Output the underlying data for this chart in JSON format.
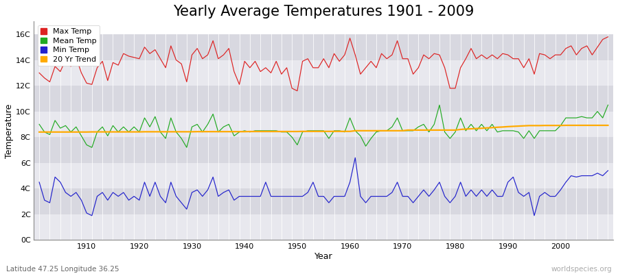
{
  "title": "Yearly Average Temperatures 1901 - 2009",
  "xlabel": "Year",
  "ylabel": "Temperature",
  "subtitle_left": "Latitude 47.25 Longitude 36.25",
  "subtitle_right": "worldspecies.org",
  "years": [
    1901,
    1902,
    1903,
    1904,
    1905,
    1906,
    1907,
    1908,
    1909,
    1910,
    1911,
    1912,
    1913,
    1914,
    1915,
    1916,
    1917,
    1918,
    1919,
    1920,
    1921,
    1922,
    1923,
    1924,
    1925,
    1926,
    1927,
    1928,
    1929,
    1930,
    1931,
    1932,
    1933,
    1934,
    1935,
    1936,
    1937,
    1938,
    1939,
    1940,
    1941,
    1942,
    1943,
    1944,
    1945,
    1946,
    1947,
    1948,
    1949,
    1950,
    1951,
    1952,
    1953,
    1954,
    1955,
    1956,
    1957,
    1958,
    1959,
    1960,
    1961,
    1962,
    1963,
    1964,
    1965,
    1966,
    1967,
    1968,
    1969,
    1970,
    1971,
    1972,
    1973,
    1974,
    1975,
    1976,
    1977,
    1978,
    1979,
    1980,
    1981,
    1982,
    1983,
    1984,
    1985,
    1986,
    1987,
    1988,
    1989,
    1990,
    1991,
    1992,
    1993,
    1994,
    1995,
    1996,
    1997,
    1998,
    1999,
    2000,
    2001,
    2002,
    2003,
    2004,
    2005,
    2006,
    2007,
    2008,
    2009
  ],
  "max_temp": [
    13.0,
    12.6,
    12.3,
    13.5,
    13.1,
    14.0,
    13.5,
    14.2,
    13.0,
    12.2,
    12.1,
    13.4,
    13.9,
    12.4,
    13.8,
    13.6,
    14.5,
    14.3,
    14.2,
    14.1,
    15.0,
    14.5,
    14.8,
    14.1,
    13.4,
    15.1,
    14.0,
    13.7,
    12.3,
    14.4,
    14.9,
    14.1,
    14.4,
    15.5,
    14.1,
    14.4,
    14.9,
    13.1,
    12.1,
    13.9,
    13.4,
    13.9,
    13.1,
    13.4,
    13.0,
    13.9,
    12.9,
    13.4,
    11.8,
    11.6,
    13.9,
    14.1,
    13.4,
    13.4,
    14.1,
    13.4,
    14.5,
    13.9,
    14.4,
    15.7,
    14.4,
    12.9,
    13.4,
    13.9,
    13.4,
    14.5,
    14.1,
    14.4,
    15.5,
    14.1,
    14.1,
    12.9,
    13.4,
    14.4,
    14.1,
    14.5,
    14.4,
    13.4,
    11.8,
    11.8,
    13.4,
    14.1,
    14.9,
    14.1,
    14.4,
    14.1,
    14.4,
    14.1,
    14.5,
    14.4,
    14.1,
    14.1,
    13.4,
    14.1,
    12.9,
    14.5,
    14.4,
    14.1,
    14.4,
    14.4,
    14.9,
    15.1,
    14.4,
    14.9,
    15.1,
    14.4,
    15.0,
    15.6,
    15.8
  ],
  "mean_temp": [
    9.0,
    8.4,
    8.2,
    9.3,
    8.7,
    8.9,
    8.4,
    8.8,
    8.1,
    7.4,
    7.2,
    8.4,
    8.8,
    8.1,
    8.9,
    8.4,
    8.8,
    8.4,
    8.8,
    8.4,
    9.5,
    8.8,
    9.6,
    8.4,
    7.9,
    9.5,
    8.4,
    7.9,
    7.2,
    8.8,
    9.0,
    8.4,
    9.0,
    9.8,
    8.4,
    8.8,
    9.0,
    8.1,
    8.4,
    8.5,
    8.4,
    8.5,
    8.5,
    8.5,
    8.5,
    8.5,
    8.4,
    8.4,
    8.0,
    7.4,
    8.4,
    8.5,
    8.5,
    8.5,
    8.5,
    7.9,
    8.5,
    8.5,
    8.4,
    9.5,
    8.5,
    8.1,
    7.3,
    7.9,
    8.4,
    8.5,
    8.5,
    8.8,
    9.5,
    8.5,
    8.5,
    8.5,
    8.8,
    9.0,
    8.4,
    9.0,
    10.5,
    8.4,
    7.9,
    8.4,
    9.5,
    8.5,
    9.0,
    8.5,
    9.0,
    8.5,
    9.0,
    8.4,
    8.5,
    8.5,
    8.5,
    8.4,
    7.9,
    8.5,
    7.9,
    8.5,
    8.5,
    8.5,
    8.5,
    8.9,
    9.5,
    9.5,
    9.5,
    9.6,
    9.5,
    9.5,
    10.0,
    9.5,
    10.5
  ],
  "min_temp": [
    4.5,
    3.1,
    2.9,
    4.9,
    4.5,
    3.7,
    3.4,
    3.7,
    3.1,
    2.1,
    1.9,
    3.4,
    3.7,
    3.1,
    3.7,
    3.4,
    3.7,
    3.1,
    3.4,
    3.1,
    4.5,
    3.4,
    4.5,
    3.4,
    2.9,
    4.5,
    3.4,
    2.9,
    2.4,
    3.7,
    3.9,
    3.4,
    3.9,
    4.9,
    3.4,
    3.7,
    3.9,
    3.1,
    3.4,
    3.4,
    3.4,
    3.4,
    3.4,
    4.5,
    3.4,
    3.4,
    3.4,
    3.4,
    3.4,
    3.4,
    3.4,
    3.7,
    4.5,
    3.4,
    3.4,
    2.9,
    3.4,
    3.4,
    3.4,
    4.5,
    6.4,
    3.4,
    2.9,
    3.4,
    3.4,
    3.4,
    3.4,
    3.7,
    4.5,
    3.4,
    3.4,
    2.9,
    3.4,
    3.9,
    3.4,
    3.9,
    4.5,
    3.4,
    2.9,
    3.4,
    4.5,
    3.4,
    3.9,
    3.4,
    3.9,
    3.4,
    3.9,
    3.4,
    3.4,
    4.5,
    4.9,
    3.7,
    3.4,
    3.7,
    1.9,
    3.4,
    3.7,
    3.4,
    3.4,
    3.9,
    4.5,
    5.0,
    4.9,
    5.0,
    5.0,
    5.0,
    5.2,
    5.0,
    5.4
  ],
  "trend_temp": [
    8.4,
    8.4,
    8.4,
    8.4,
    8.4,
    8.4,
    8.4,
    8.4,
    8.4,
    8.4,
    8.41,
    8.41,
    8.41,
    8.41,
    8.41,
    8.41,
    8.41,
    8.41,
    8.41,
    8.41,
    8.42,
    8.42,
    8.42,
    8.42,
    8.42,
    8.42,
    8.42,
    8.42,
    8.42,
    8.42,
    8.43,
    8.43,
    8.43,
    8.43,
    8.43,
    8.43,
    8.43,
    8.43,
    8.43,
    8.43,
    8.44,
    8.44,
    8.44,
    8.44,
    8.44,
    8.44,
    8.44,
    8.44,
    8.44,
    8.44,
    8.45,
    8.45,
    8.45,
    8.45,
    8.45,
    8.45,
    8.45,
    8.45,
    8.45,
    8.45,
    8.5,
    8.5,
    8.5,
    8.5,
    8.5,
    8.5,
    8.5,
    8.5,
    8.5,
    8.5,
    8.55,
    8.55,
    8.55,
    8.55,
    8.55,
    8.55,
    8.55,
    8.55,
    8.55,
    8.55,
    8.6,
    8.63,
    8.65,
    8.67,
    8.69,
    8.72,
    8.74,
    8.77,
    8.79,
    8.82,
    8.84,
    8.86,
    8.88,
    8.9,
    8.9,
    8.9,
    8.91,
    8.91,
    8.91,
    8.91,
    8.92,
    8.92,
    8.92,
    8.92,
    8.92,
    8.92,
    8.92,
    8.92,
    8.92
  ],
  "max_color": "#dd2222",
  "mean_color": "#22aa22",
  "min_color": "#2222cc",
  "trend_color": "#ffaa00",
  "bg_color": "#ffffff",
  "plot_bg_light": "#e8e8ee",
  "plot_bg_dark": "#d8d8e0",
  "ylim": [
    0,
    17
  ],
  "ytick_vals": [
    0,
    2,
    4,
    6,
    8,
    10,
    12,
    14,
    16
  ],
  "ytick_labels": [
    "0C",
    "2C",
    "4C",
    "6C",
    "8C",
    "10C",
    "12C",
    "14C",
    "16C"
  ],
  "xlim": [
    1900,
    2010
  ],
  "xticks": [
    1910,
    1920,
    1930,
    1940,
    1950,
    1960,
    1970,
    1980,
    1990,
    2000
  ],
  "title_fontsize": 15,
  "legend_fontsize": 8,
  "axis_label_fontsize": 9,
  "tick_fontsize": 8
}
